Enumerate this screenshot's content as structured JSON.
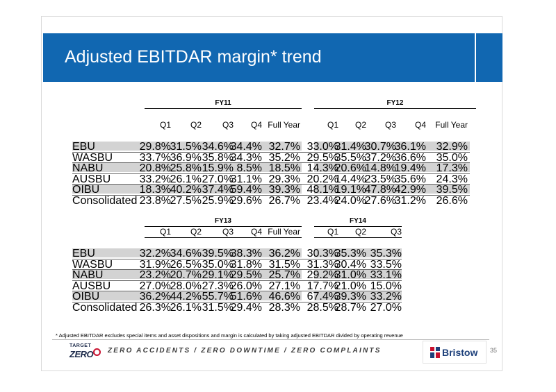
{
  "title": "Adjusted EBITDAR margin* trend",
  "colors": {
    "title_bar": "#1167b1",
    "row_shade": "#d3d3d3",
    "brand_red": "#c8102e",
    "brand_navy": "#1c3f7a"
  },
  "top_table": {
    "groups": [
      {
        "label": "FY11",
        "columns": [
          "Q1",
          "Q2",
          "Q3",
          "Q4",
          "Full Year"
        ]
      },
      {
        "label": "FY12",
        "columns": [
          "Q1",
          "Q2",
          "Q3",
          "Q4",
          "Full Year"
        ]
      }
    ],
    "rows": [
      {
        "label": "EBU",
        "fy11": [
          "29.8%",
          "31.5%",
          "34.6%",
          "34.4%",
          "32.7%"
        ],
        "fy12": [
          "33.0%",
          "31.4%",
          "30.7%",
          "36.1%",
          "32.9%"
        ]
      },
      {
        "label": "WASBU",
        "fy11": [
          "33.7%",
          "36.9%",
          "35.8%",
          "34.3%",
          "35.2%"
        ],
        "fy12": [
          "29.5%",
          "35.5%",
          "37.2%",
          "36.6%",
          "35.0%"
        ]
      },
      {
        "label": "NABU",
        "fy11": [
          "20.8%",
          "25.8%",
          "15.9%",
          "8.5%",
          "18.5%"
        ],
        "fy12": [
          "14.3%",
          "20.6%",
          "14.8%",
          "19.4%",
          "17.3%"
        ]
      },
      {
        "label": "AUSBU",
        "fy11": [
          "33.2%",
          "26.1%",
          "27.0%",
          "31.1%",
          "29.3%"
        ],
        "fy12": [
          "20.2%",
          "14.4%",
          "23.5%",
          "35.6%",
          "24.3%"
        ]
      },
      {
        "label": "OIBU",
        "fy11": [
          "18.3%",
          "40.2%",
          "37.4%",
          "59.4%",
          "39.3%"
        ],
        "fy12": [
          "48.1%",
          "19.1%",
          "47.8%",
          "42.9%",
          "39.5%"
        ]
      },
      {
        "label": "Consolidated",
        "fy11": [
          "23.8%",
          "27.5%",
          "25.9%",
          "29.6%",
          "26.7%"
        ],
        "fy12": [
          "23.4%",
          "24.0%",
          "27.6%",
          "31.2%",
          "26.6%"
        ]
      }
    ]
  },
  "bottom_table": {
    "groups": [
      {
        "label": "FY13",
        "columns": [
          "Q1",
          "Q2",
          "Q3",
          "Q4",
          "Full Year"
        ]
      },
      {
        "label": "FY14",
        "columns": [
          "Q1",
          "Q2",
          "Q3"
        ]
      }
    ],
    "rows": [
      {
        "label": "EBU",
        "fy13": [
          "32.2%",
          "34.6%",
          "39.5%",
          "38.3%",
          "36.2%"
        ],
        "fy14": [
          "30.3%",
          "35.3%",
          "35.3%"
        ]
      },
      {
        "label": "WASBU",
        "fy13": [
          "31.9%",
          "26.5%",
          "35.0%",
          "31.8%",
          "31.5%"
        ],
        "fy14": [
          "31.3%",
          "30.4%",
          "33.5%"
        ]
      },
      {
        "label": "NABU",
        "fy13": [
          "23.2%",
          "20.7%",
          "29.1%",
          "29.5%",
          "25.7%"
        ],
        "fy14": [
          "29.2%",
          "31.0%",
          "33.1%"
        ]
      },
      {
        "label": "AUSBU",
        "fy13": [
          "27.0%",
          "28.0%",
          "27.3%",
          "26.0%",
          "27.1%"
        ],
        "fy14": [
          "17.7%",
          "21.0%",
          "15.0%"
        ]
      },
      {
        "label": "OIBU",
        "fy13": [
          "36.2%",
          "44.2%",
          "55.7%",
          "51.6%",
          "46.6%"
        ],
        "fy14": [
          "67.4%",
          "39.3%",
          "33.2%"
        ]
      },
      {
        "label": "Consolidated",
        "fy13": [
          "26.3%",
          "26.1%",
          "31.5%",
          "29.4%",
          "28.3%"
        ],
        "fy14": [
          "28.5%",
          "28.7%",
          "27.0%"
        ]
      }
    ]
  },
  "footnote": "* Adjusted EBITDAR excludes special items and asset dispositions and margin is calculated by taking adjusted EBITDAR divided by operating revenue",
  "footer": {
    "logo_target": "TARGET",
    "logo_zero": "ZERO",
    "tagline": "ZERO ACCIDENTS / ZERO DOWNTIME / ZERO COMPLAINTS",
    "brand": "Bristow",
    "page_number": "35"
  }
}
